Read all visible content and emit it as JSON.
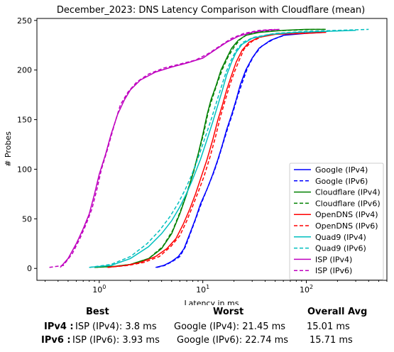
{
  "chart_data": {
    "type": "line",
    "title": "December_2023: DNS Latency Comparison with Cloudflare (mean)",
    "xlabel": "Latency in ms",
    "ylabel": "# Probes",
    "xscale": "log",
    "xlim": [
      0.25,
      600
    ],
    "ylim": [
      -12,
      252
    ],
    "x_tick_labels": [
      "10^0",
      "10^1",
      "10^2"
    ],
    "y_ticks": [
      0,
      50,
      100,
      150,
      200,
      250
    ],
    "grid": false,
    "legend_position": "lower-right",
    "series": [
      {
        "name": "Google (IPv4)",
        "color": "#0000ff",
        "dash": "solid",
        "points": [
          [
            3.5,
            1
          ],
          [
            4.2,
            3
          ],
          [
            5.0,
            7
          ],
          [
            5.8,
            12
          ],
          [
            6.6,
            20
          ],
          [
            7.5,
            35
          ],
          [
            8.5,
            50
          ],
          [
            9.5,
            65
          ],
          [
            11,
            80
          ],
          [
            12.5,
            95
          ],
          [
            14,
            110
          ],
          [
            15.5,
            125
          ],
          [
            17,
            140
          ],
          [
            19,
            155
          ],
          [
            21,
            170
          ],
          [
            23,
            185
          ],
          [
            26,
            200
          ],
          [
            30,
            212
          ],
          [
            35,
            222
          ],
          [
            45,
            230
          ],
          [
            60,
            235
          ],
          [
            100,
            237
          ],
          [
            150,
            238
          ]
        ]
      },
      {
        "name": "Google (IPv6)",
        "color": "#0000ff",
        "dash": "dashed",
        "points": [
          [
            3.6,
            1
          ],
          [
            4.3,
            3
          ],
          [
            5.1,
            7
          ],
          [
            6.0,
            12
          ],
          [
            6.8,
            22
          ],
          [
            7.7,
            37
          ],
          [
            8.7,
            52
          ],
          [
            9.8,
            67
          ],
          [
            11.2,
            82
          ],
          [
            12.8,
            97
          ],
          [
            14.3,
            112
          ],
          [
            15.8,
            127
          ],
          [
            17.5,
            142
          ],
          [
            19.5,
            157
          ],
          [
            21.5,
            172
          ],
          [
            24,
            187
          ],
          [
            27,
            202
          ],
          [
            31,
            214
          ],
          [
            37,
            224
          ],
          [
            48,
            231
          ],
          [
            65,
            236
          ],
          [
            110,
            238
          ],
          [
            160,
            239
          ]
        ]
      },
      {
        "name": "Cloudflare (IPv4)",
        "color": "#008000",
        "dash": "solid",
        "points": [
          [
            0.9,
            1
          ],
          [
            1.4,
            2
          ],
          [
            2.0,
            4
          ],
          [
            3.0,
            10
          ],
          [
            4.0,
            20
          ],
          [
            5.0,
            35
          ],
          [
            6.0,
            55
          ],
          [
            7.0,
            75
          ],
          [
            8.0,
            95
          ],
          [
            9.0,
            115
          ],
          [
            10,
            135
          ],
          [
            11,
            155
          ],
          [
            12,
            170
          ],
          [
            13.5,
            185
          ],
          [
            15,
            200
          ],
          [
            17,
            212
          ],
          [
            19,
            222
          ],
          [
            22,
            230
          ],
          [
            26,
            235
          ],
          [
            35,
            238
          ],
          [
            60,
            240
          ],
          [
            100,
            241
          ],
          [
            150,
            241
          ]
        ]
      },
      {
        "name": "Cloudflare (IPv6)",
        "color": "#008000",
        "dash": "dashed",
        "points": [
          [
            0.9,
            1
          ],
          [
            1.4,
            2
          ],
          [
            2.0,
            4
          ],
          [
            3.0,
            10
          ],
          [
            4.1,
            22
          ],
          [
            5.1,
            38
          ],
          [
            6.1,
            58
          ],
          [
            7.1,
            78
          ],
          [
            8.2,
            98
          ],
          [
            9.2,
            118
          ],
          [
            10.3,
            138
          ],
          [
            11.3,
            158
          ],
          [
            12.4,
            172
          ],
          [
            13.8,
            187
          ],
          [
            15.5,
            201
          ],
          [
            17.5,
            213
          ],
          [
            20,
            223
          ],
          [
            23,
            231
          ],
          [
            27,
            236
          ],
          [
            36,
            239
          ],
          [
            65,
            240
          ],
          [
            120,
            241
          ],
          [
            160,
            241
          ]
        ]
      },
      {
        "name": "OpenDNS (IPv4)",
        "color": "#ff0000",
        "dash": "solid",
        "points": [
          [
            1.2,
            1
          ],
          [
            1.8,
            3
          ],
          [
            2.5,
            6
          ],
          [
            3.5,
            12
          ],
          [
            4.5,
            20
          ],
          [
            5.5,
            30
          ],
          [
            6.5,
            45
          ],
          [
            7.5,
            60
          ],
          [
            8.5,
            75
          ],
          [
            9.5,
            90
          ],
          [
            11,
            110
          ],
          [
            12.5,
            130
          ],
          [
            14,
            150
          ],
          [
            15.5,
            165
          ],
          [
            17,
            180
          ],
          [
            19,
            195
          ],
          [
            21,
            208
          ],
          [
            24,
            220
          ],
          [
            28,
            228
          ],
          [
            35,
            233
          ],
          [
            50,
            236
          ],
          [
            100,
            237
          ],
          [
            150,
            238
          ]
        ]
      },
      {
        "name": "OpenDNS (IPv6)",
        "color": "#ff0000",
        "dash": "dashed",
        "points": [
          [
            1.2,
            1
          ],
          [
            1.9,
            3
          ],
          [
            2.7,
            6
          ],
          [
            3.8,
            12
          ],
          [
            4.9,
            22
          ],
          [
            6.0,
            33
          ],
          [
            7.0,
            48
          ],
          [
            8.0,
            63
          ],
          [
            9.1,
            78
          ],
          [
            10.3,
            93
          ],
          [
            11.8,
            113
          ],
          [
            13.3,
            133
          ],
          [
            14.8,
            153
          ],
          [
            16.3,
            168
          ],
          [
            18,
            183
          ],
          [
            20,
            197
          ],
          [
            22.5,
            210
          ],
          [
            25,
            221
          ],
          [
            30,
            229
          ],
          [
            38,
            234
          ],
          [
            55,
            237
          ],
          [
            110,
            238
          ],
          [
            160,
            238
          ]
        ]
      },
      {
        "name": "Quad9 (IPv4)",
        "color": "#00bfbf",
        "dash": "solid",
        "points": [
          [
            0.8,
            1
          ],
          [
            1.3,
            3
          ],
          [
            2.0,
            10
          ],
          [
            3.0,
            22
          ],
          [
            4.0,
            35
          ],
          [
            5.0,
            48
          ],
          [
            6.0,
            62
          ],
          [
            7.0,
            76
          ],
          [
            8.0,
            90
          ],
          [
            9.5,
            110
          ],
          [
            11,
            130
          ],
          [
            12.5,
            148
          ],
          [
            14,
            165
          ],
          [
            15.5,
            180
          ],
          [
            17,
            195
          ],
          [
            19,
            208
          ],
          [
            21,
            218
          ],
          [
            24,
            226
          ],
          [
            30,
            232
          ],
          [
            45,
            236
          ],
          [
            80,
            238
          ],
          [
            150,
            239
          ],
          [
            300,
            240
          ]
        ]
      },
      {
        "name": "Quad9 (IPv6)",
        "color": "#00bfbf",
        "dash": "dashed",
        "points": [
          [
            0.8,
            1
          ],
          [
            1.3,
            4
          ],
          [
            2.0,
            12
          ],
          [
            2.9,
            25
          ],
          [
            3.8,
            38
          ],
          [
            4.8,
            52
          ],
          [
            5.8,
            66
          ],
          [
            6.8,
            80
          ],
          [
            7.8,
            94
          ],
          [
            9.2,
            114
          ],
          [
            10.7,
            134
          ],
          [
            12.2,
            152
          ],
          [
            13.7,
            169
          ],
          [
            15.2,
            184
          ],
          [
            16.8,
            198
          ],
          [
            18.8,
            210
          ],
          [
            21,
            220
          ],
          [
            24.5,
            228
          ],
          [
            31,
            233
          ],
          [
            50,
            237
          ],
          [
            100,
            239
          ],
          [
            200,
            240
          ],
          [
            400,
            241
          ]
        ]
      },
      {
        "name": "ISP (IPv4)",
        "color": "#bf00bf",
        "dash": "solid",
        "points": [
          [
            0.42,
            1
          ],
          [
            0.5,
            10
          ],
          [
            0.6,
            25
          ],
          [
            0.7,
            40
          ],
          [
            0.8,
            55
          ],
          [
            0.9,
            75
          ],
          [
            1.0,
            95
          ],
          [
            1.15,
            115
          ],
          [
            1.3,
            135
          ],
          [
            1.5,
            155
          ],
          [
            1.75,
            170
          ],
          [
            2.0,
            180
          ],
          [
            2.5,
            190
          ],
          [
            3.5,
            198
          ],
          [
            5,
            203
          ],
          [
            7,
            207
          ],
          [
            10,
            212
          ],
          [
            13,
            220
          ],
          [
            17,
            228
          ],
          [
            22,
            234
          ],
          [
            30,
            238
          ],
          [
            40,
            240
          ],
          [
            55,
            241
          ]
        ]
      },
      {
        "name": "ISP (IPv6)",
        "color": "#bf00bf",
        "dash": "dashed",
        "points": [
          [
            0.33,
            1
          ],
          [
            0.45,
            3
          ],
          [
            0.55,
            15
          ],
          [
            0.65,
            30
          ],
          [
            0.75,
            45
          ],
          [
            0.85,
            60
          ],
          [
            0.95,
            80
          ],
          [
            1.05,
            100
          ],
          [
            1.2,
            120
          ],
          [
            1.4,
            145
          ],
          [
            1.6,
            165
          ],
          [
            1.9,
            178
          ],
          [
            2.3,
            188
          ],
          [
            3,
            196
          ],
          [
            4.2,
            202
          ],
          [
            6,
            206
          ],
          [
            8.5,
            210
          ],
          [
            11.5,
            217
          ],
          [
            15,
            225
          ],
          [
            19,
            232
          ],
          [
            25,
            237
          ],
          [
            35,
            240
          ],
          [
            50,
            241
          ]
        ]
      }
    ]
  },
  "summary": {
    "headers": {
      "best": "Best",
      "worst": "Worst",
      "overall": "Overall Avg"
    },
    "rows": [
      {
        "label": "IPv4 :",
        "best": "ISP (IPv4): 3.8 ms",
        "worst": "Google (IPv4): 21.45 ms",
        "overall": "15.01 ms"
      },
      {
        "label": "IPv6 :",
        "best": "ISP (IPv6): 3.93 ms",
        "worst": "Google (IPv6): 22.74 ms",
        "overall": "15.71 ms"
      }
    ]
  }
}
